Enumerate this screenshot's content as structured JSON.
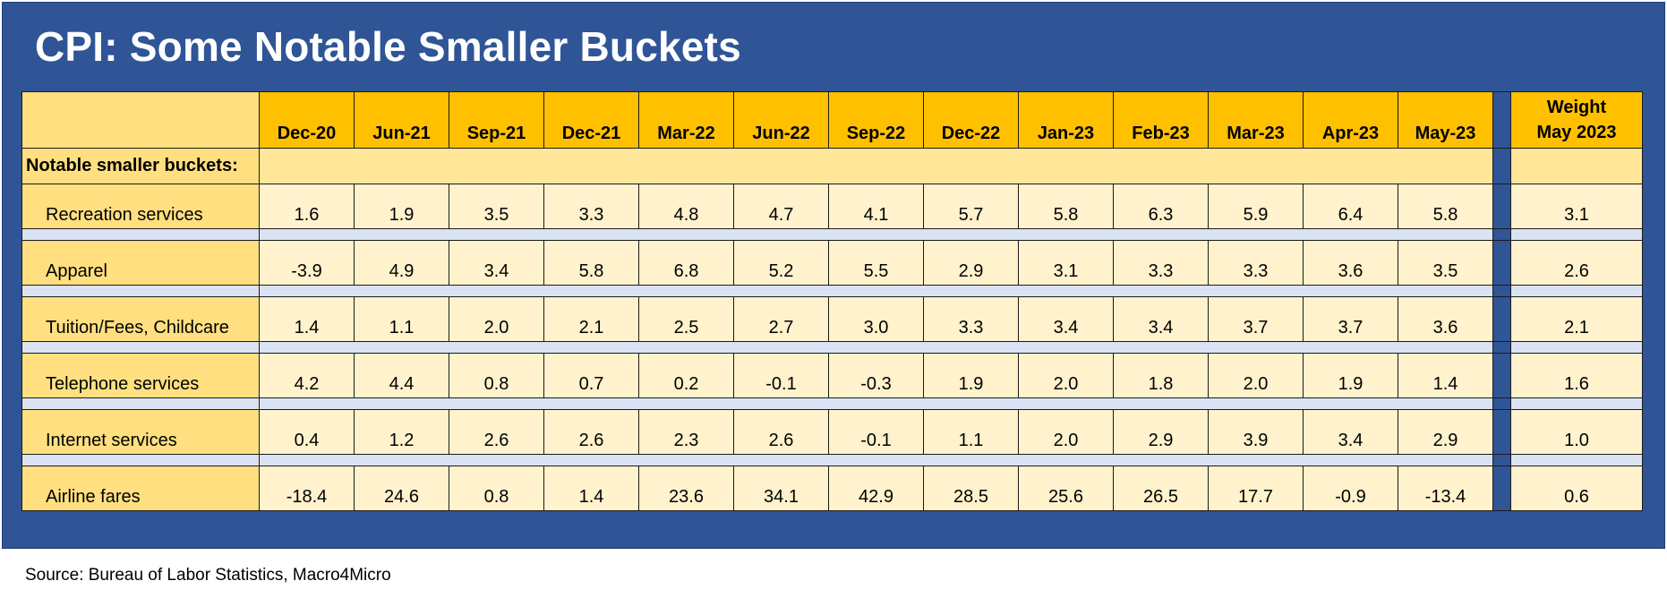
{
  "title": "CPI: Some Notable Smaller Buckets",
  "source": "Source: Bureau of Labor Statistics, Macro4Micro",
  "chart_data": {
    "type": "table",
    "title": "CPI: Some Notable Smaller Buckets",
    "section_label": "Notable smaller buckets:",
    "columns": [
      "Dec-20",
      "Jun-21",
      "Sep-21",
      "Dec-21",
      "Mar-22",
      "Jun-22",
      "Sep-22",
      "Dec-22",
      "Jan-23",
      "Feb-23",
      "Mar-23",
      "Apr-23",
      "May-23"
    ],
    "weight_header": [
      "Weight",
      "May 2023"
    ],
    "rows": [
      {
        "label": "Recreation services",
        "values": [
          "1.6",
          "1.9",
          "3.5",
          "3.3",
          "4.8",
          "4.7",
          "4.1",
          "5.7",
          "5.8",
          "6.3",
          "5.9",
          "6.4",
          "5.8"
        ],
        "weight": "3.1"
      },
      {
        "label": "Apparel",
        "values": [
          "-3.9",
          "4.9",
          "3.4",
          "5.8",
          "6.8",
          "5.2",
          "5.5",
          "2.9",
          "3.1",
          "3.3",
          "3.3",
          "3.6",
          "3.5"
        ],
        "weight": "2.6"
      },
      {
        "label": "Tuition/Fees, Childcare",
        "values": [
          "1.4",
          "1.1",
          "2.0",
          "2.1",
          "2.5",
          "2.7",
          "3.0",
          "3.3",
          "3.4",
          "3.4",
          "3.7",
          "3.7",
          "3.6"
        ],
        "weight": "2.1"
      },
      {
        "label": "Telephone services",
        "values": [
          "4.2",
          "4.4",
          "0.8",
          "0.7",
          "0.2",
          "-0.1",
          "-0.3",
          "1.9",
          "2.0",
          "1.8",
          "2.0",
          "1.9",
          "1.4"
        ],
        "weight": "1.6"
      },
      {
        "label": "Internet services",
        "values": [
          "0.4",
          "1.2",
          "2.6",
          "2.6",
          "2.3",
          "2.6",
          "-0.1",
          "1.1",
          "2.0",
          "2.9",
          "3.9",
          "3.4",
          "2.9"
        ],
        "weight": "1.0"
      },
      {
        "label": "Airline fares",
        "values": [
          "-18.4",
          "24.6",
          "0.8",
          "1.4",
          "23.6",
          "34.1",
          "42.9",
          "28.5",
          "25.6",
          "26.5",
          "17.7",
          "-0.9",
          "-13.4"
        ],
        "weight": "0.6"
      }
    ]
  }
}
